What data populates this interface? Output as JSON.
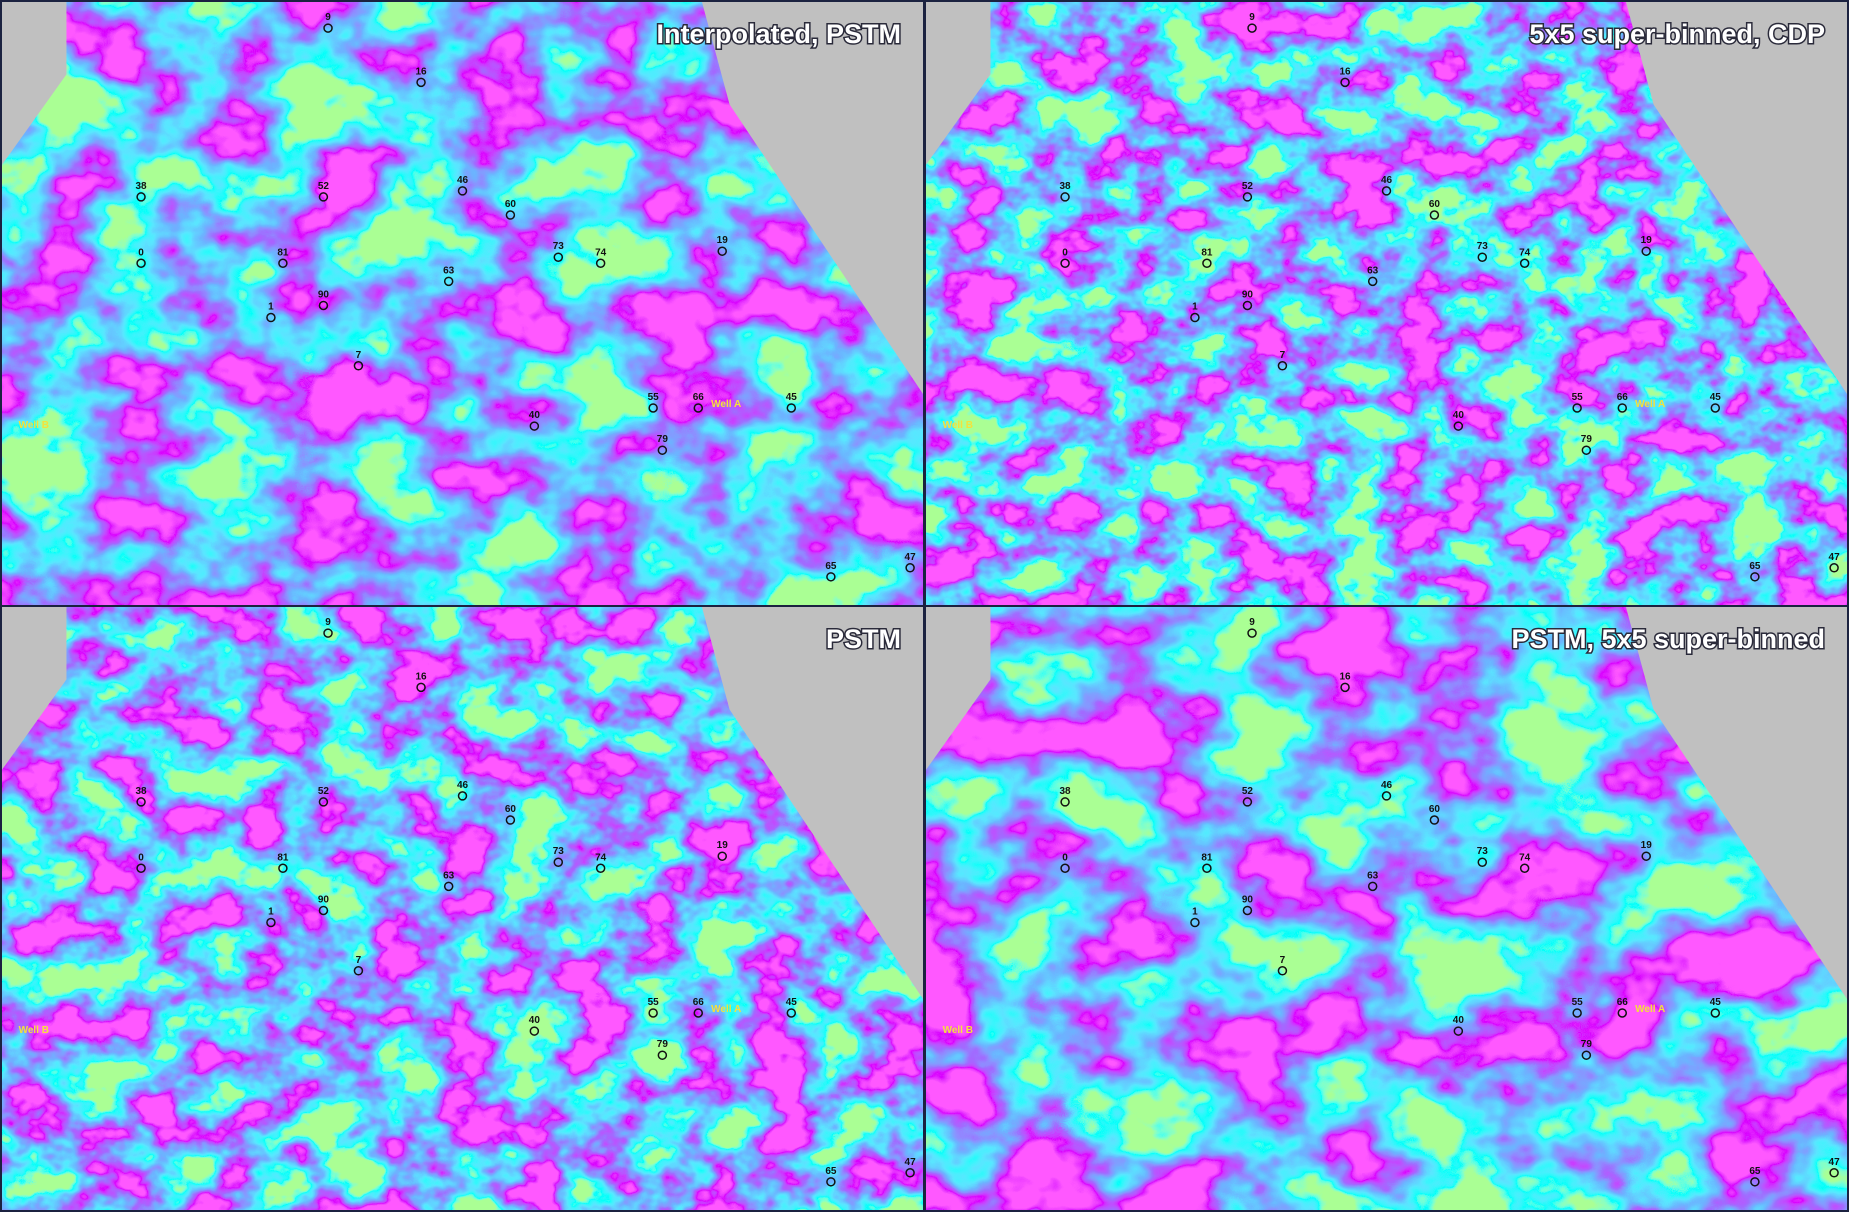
{
  "panels": [
    {
      "title": "Interpolated, PSTM"
    },
    {
      "title": "5x5 super-binned, CDP"
    },
    {
      "title": "PSTM"
    },
    {
      "title": "PSTM, 5x5 super-binned"
    }
  ],
  "wells": [
    "9",
    "16",
    "38",
    "0",
    "52",
    "81",
    "46",
    "60",
    "63",
    "90",
    "1",
    "7",
    "73",
    "74",
    "19",
    "55",
    "66",
    "Well A",
    "45",
    "40",
    "79",
    "Well B",
    "65",
    "47"
  ]
}
